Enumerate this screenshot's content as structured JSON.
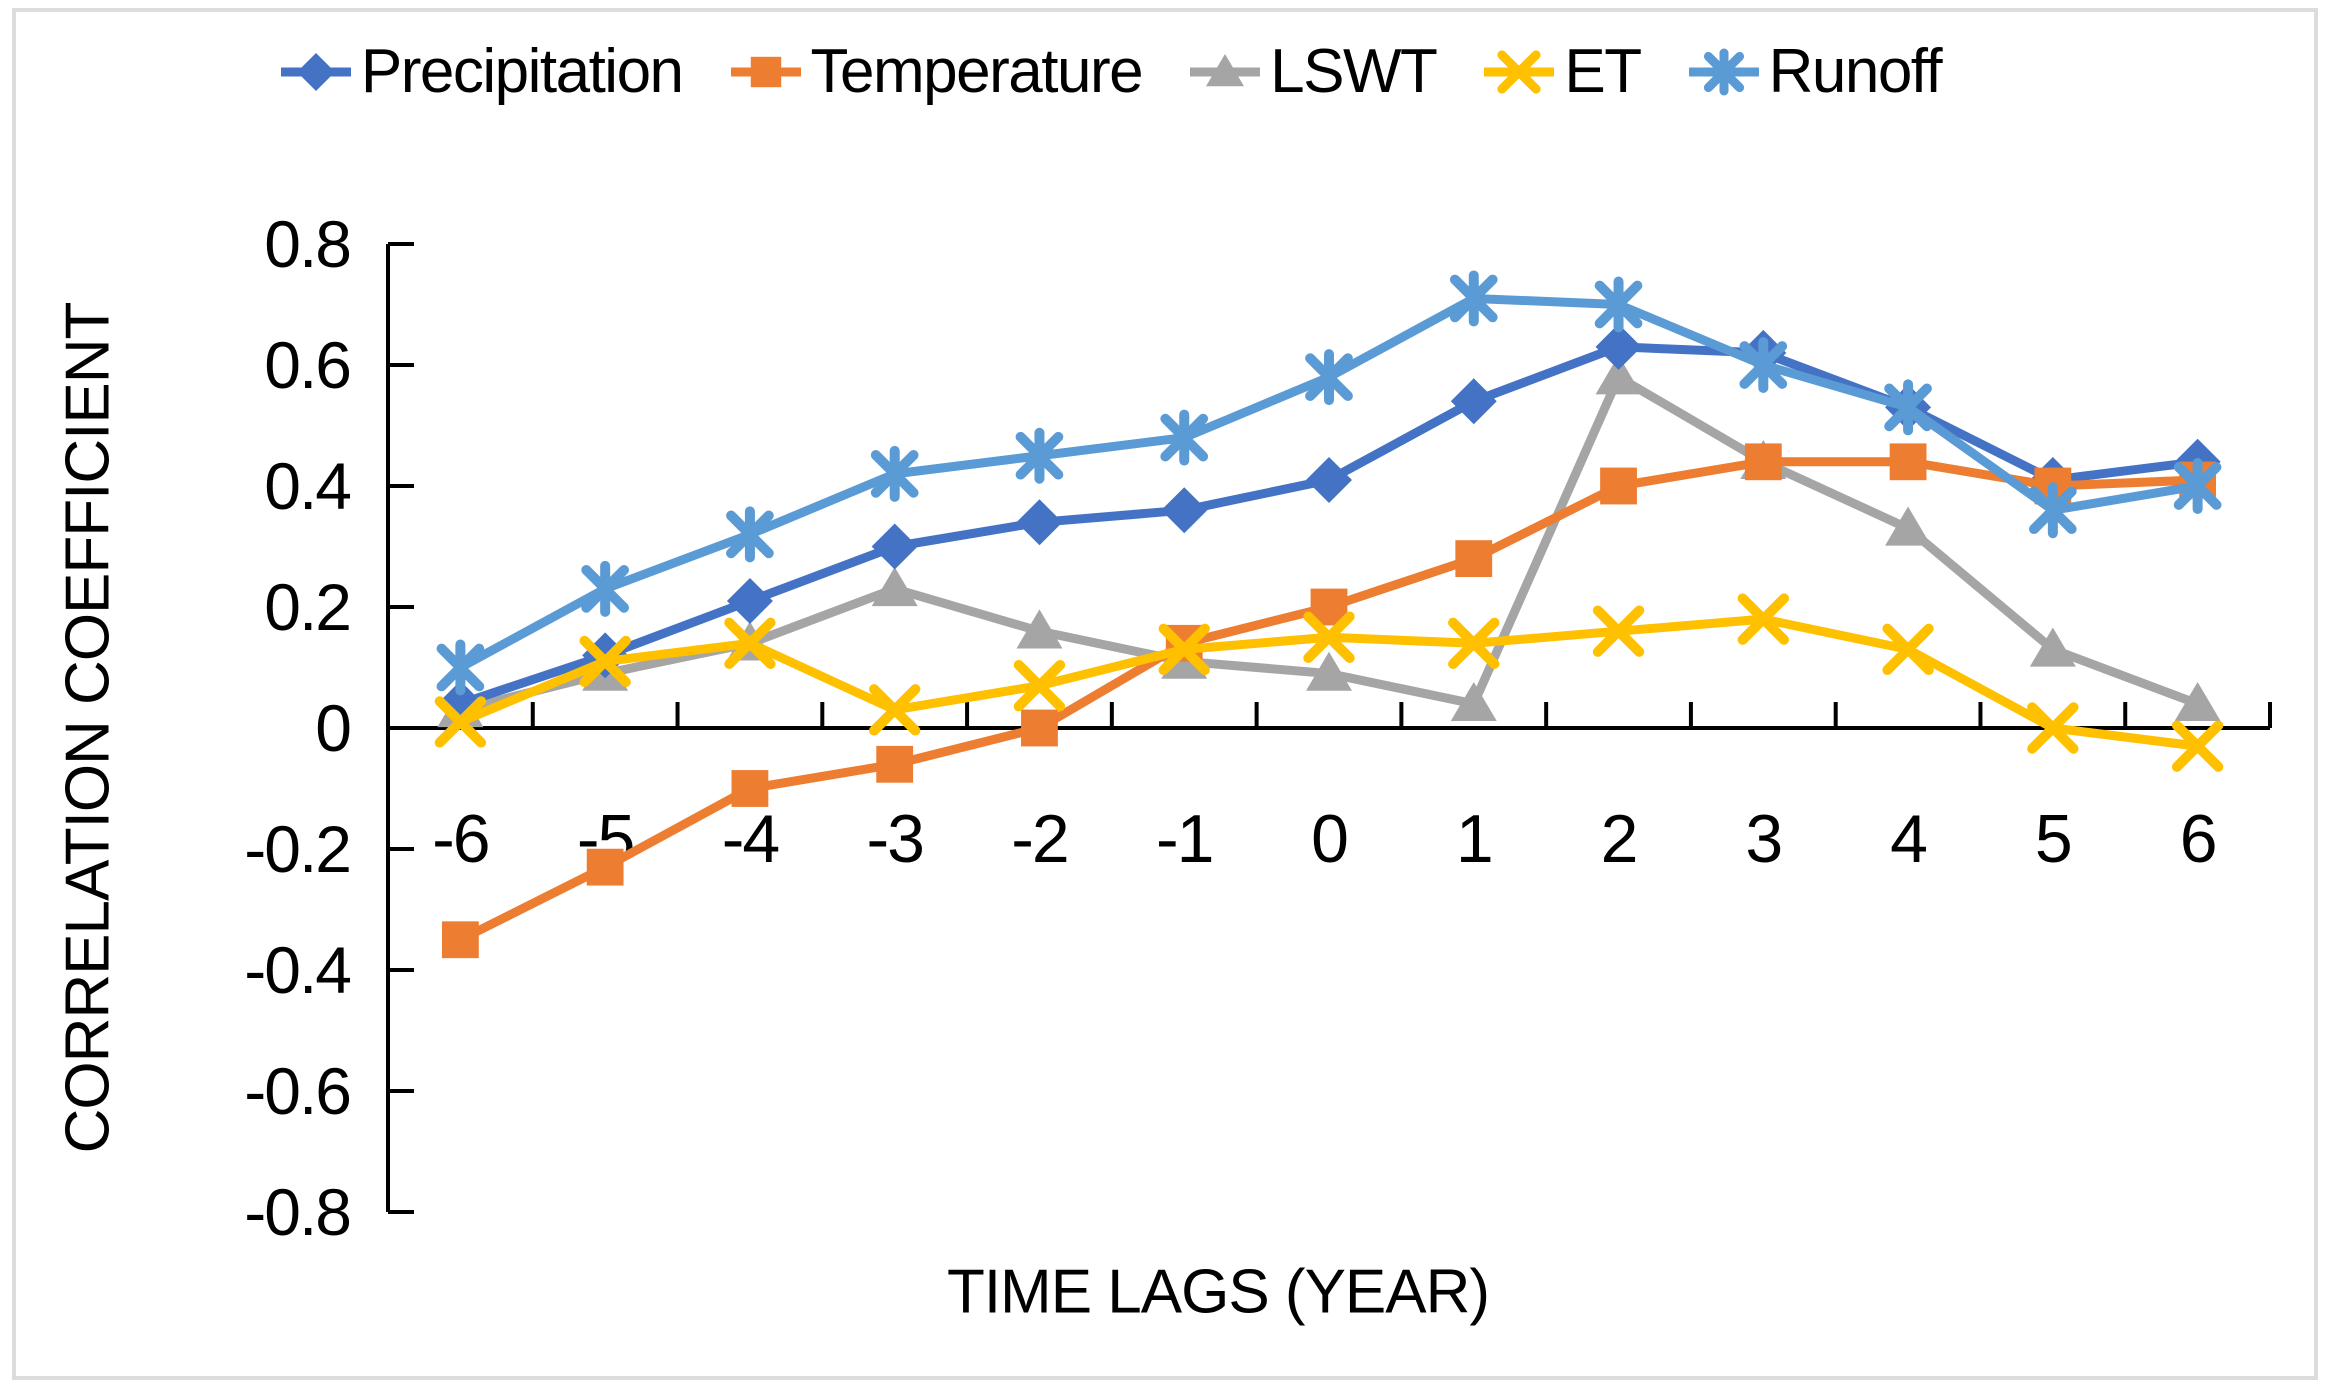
{
  "figure": {
    "background_color": "#ffffff",
    "border_color": "#dcdcdc"
  },
  "chart_data": {
    "type": "line",
    "title": "",
    "xlabel": "TIME LAGS (YEAR)",
    "ylabel": "CORRELATION COEFFICIENT",
    "categories": [
      -6,
      -5,
      -4,
      -3,
      -2,
      -1,
      0,
      1,
      2,
      3,
      4,
      5,
      6
    ],
    "x_tick_labels": [
      "-6",
      "-5",
      "-4",
      "-3",
      "-2",
      "-1",
      "0",
      "1",
      "2",
      "3",
      "4",
      "5",
      "6"
    ],
    "y_ticks": [
      0.8,
      0.6,
      0.4,
      0.2,
      0,
      -0.2,
      -0.4,
      -0.6,
      -0.8
    ],
    "y_tick_labels": [
      "0.8",
      "0.6",
      "0.4",
      "0.2",
      "0",
      "-0.2",
      "-0.4",
      "-0.6",
      "-0.8"
    ],
    "ylim": [
      -0.8,
      0.8
    ],
    "grid": false,
    "legend_position": "top",
    "axis_color": "#000000",
    "text_color": "#000000",
    "series": [
      {
        "name": "Precipitation",
        "marker": "diamond",
        "color": "#4472C4",
        "values": [
          0.04,
          0.12,
          0.21,
          0.3,
          0.34,
          0.36,
          0.41,
          0.54,
          0.63,
          0.62,
          0.53,
          0.41,
          0.44
        ]
      },
      {
        "name": "Temperature",
        "marker": "square",
        "color": "#ED7D31",
        "values": [
          -0.35,
          -0.23,
          -0.1,
          -0.06,
          0.0,
          0.14,
          0.2,
          0.28,
          0.4,
          0.44,
          0.44,
          0.4,
          0.41
        ]
      },
      {
        "name": "LSWT",
        "marker": "triangle",
        "color": "#A5A5A5",
        "values": [
          0.03,
          0.09,
          0.14,
          0.23,
          0.16,
          0.11,
          0.09,
          0.04,
          0.58,
          0.44,
          0.33,
          0.13,
          0.04
        ]
      },
      {
        "name": "ET",
        "marker": "x",
        "color": "#FFC000",
        "values": [
          0.01,
          0.11,
          0.14,
          0.03,
          0.07,
          0.13,
          0.15,
          0.14,
          0.16,
          0.18,
          0.13,
          0.0,
          -0.03
        ]
      },
      {
        "name": "Runoff",
        "marker": "asterisk",
        "color": "#5B9BD5",
        "values": [
          0.1,
          0.23,
          0.32,
          0.42,
          0.45,
          0.48,
          0.58,
          0.71,
          0.7,
          0.6,
          0.53,
          0.36,
          0.4
        ]
      }
    ],
    "draw_order": [
      "LSWT",
      "Precipitation",
      "Temperature",
      "ET",
      "Runoff"
    ]
  }
}
